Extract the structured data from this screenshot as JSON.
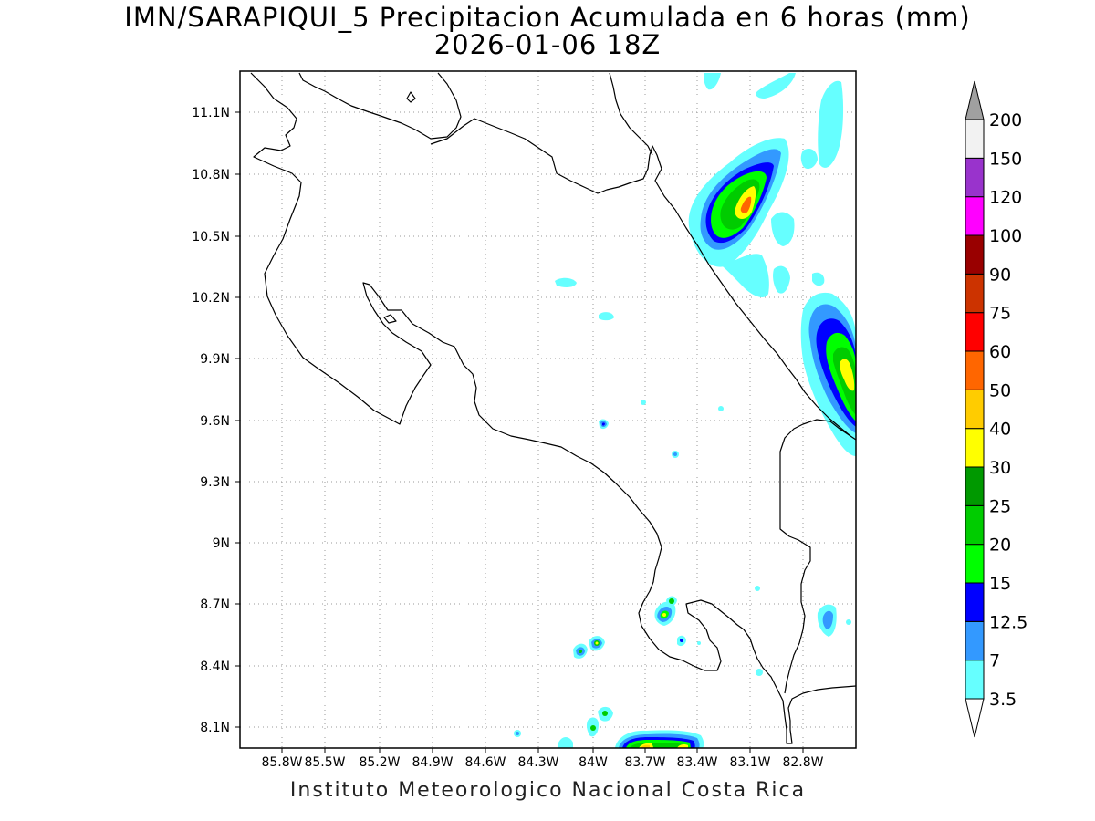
{
  "header": {
    "title": "IMN/SARAPIQUI_5 Precipitacion Acumulada en 6 horas (mm)",
    "subtitle": "2026-01-06 18Z"
  },
  "map": {
    "lon_range": [
      -85.96,
      -82.64
    ],
    "lat_range": [
      8.0,
      11.3
    ],
    "lon_ticks": [
      "85.8W",
      "85.5W",
      "85.2W",
      "84.9W",
      "84.6W",
      "84.3W",
      "84W",
      "83.7W",
      "83.4W",
      "83.1W",
      "82.8W"
    ],
    "lat_ticks": [
      "11.1N",
      "10.8N",
      "10.5N",
      "10.2N",
      "9.9N",
      "9.6N",
      "9.3N",
      "9N",
      "8.7N",
      "8.4N",
      "8.1N"
    ],
    "grid": "dotted"
  },
  "legend": {
    "labels": [
      "3.5",
      "7",
      "12.5",
      "15",
      "20",
      "25",
      "30",
      "40",
      "50",
      "60",
      "75",
      "90",
      "100",
      "120",
      "150",
      "200"
    ],
    "colors": [
      "#66ffff",
      "#3399ff",
      "#0000ff",
      "#00ff00",
      "#00cc00",
      "#009900",
      "#ffff00",
      "#ffcc00",
      "#ff6600",
      "#ff0000",
      "#cc3300",
      "#990000",
      "#ff00ff",
      "#9933cc",
      "#f2f2f2",
      "#a0a0a0"
    ]
  },
  "footer": {
    "credit": "Instituto Meteorologico Nacional Costa Rica"
  }
}
